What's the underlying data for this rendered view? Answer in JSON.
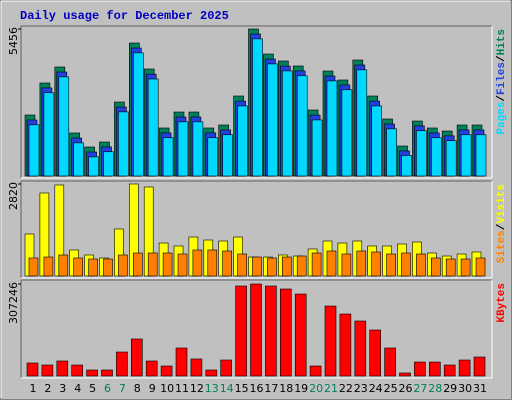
{
  "legend_separator": "/",
  "chart_data": [
    {
      "type": "bar",
      "title": "Daily usage for December 2025",
      "title_color": "#0000c0",
      "ylim": [
        0,
        5456
      ],
      "yticks": [
        5456
      ],
      "series": [
        {
          "name": "Hits",
          "color": "#00805c",
          "values": [
            2264,
            3452,
            4046,
            1596,
            1076,
            1262,
            2747,
            4936,
            3971,
            1782,
            2375,
            2375,
            1782,
            1893,
            2969,
            5456,
            4528,
            4268,
            4083,
            2450,
            3897,
            3563,
            4305,
            2969,
            2116,
            1113,
            2041,
            1782,
            1670,
            1893,
            1893
          ]
        },
        {
          "name": "Files",
          "color": "#2040e0",
          "values": [
            2080,
            3270,
            3860,
            1410,
            890,
            1080,
            2560,
            4750,
            3780,
            1600,
            2190,
            2190,
            1600,
            1710,
            2780,
            5270,
            4340,
            4080,
            3900,
            2260,
            3710,
            3380,
            4120,
            2780,
            1930,
            930,
            1860,
            1600,
            1490,
            1710,
            1710
          ]
        },
        {
          "name": "Pages",
          "color": "#00d8ff",
          "values": [
            1900,
            3090,
            3680,
            1230,
            710,
            900,
            2380,
            4570,
            3600,
            1420,
            2010,
            2010,
            1420,
            1530,
            2600,
            5090,
            4160,
            3900,
            3720,
            2080,
            3530,
            3200,
            3940,
            2600,
            1750,
            760,
            1680,
            1420,
            1310,
            1530,
            1530
          ]
        }
      ]
    },
    {
      "type": "bar",
      "ylim": [
        0,
        2820
      ],
      "yticks": [
        2820
      ],
      "series": [
        {
          "name": "Visits",
          "color": "#ffff00",
          "values": [
            1287,
            2544,
            2789,
            797,
            644,
            552,
            1441,
            2820,
            2728,
            1011,
            920,
            1195,
            1103,
            1073,
            1195,
            582,
            582,
            644,
            613,
            828,
            1073,
            1011,
            1073,
            920,
            920,
            981,
            1042,
            705,
            613,
            674,
            736
          ]
        },
        {
          "name": "Sites",
          "color": "#ff8000",
          "values": [
            552,
            582,
            644,
            552,
            521,
            521,
            644,
            705,
            705,
            705,
            674,
            797,
            797,
            766,
            674,
            582,
            552,
            582,
            613,
            705,
            766,
            674,
            766,
            736,
            674,
            705,
            674,
            552,
            521,
            521,
            552
          ]
        }
      ]
    },
    {
      "type": "bar",
      "ylim": [
        0,
        307246
      ],
      "yticks": [
        307246
      ],
      "categories": [
        "1",
        "2",
        "3",
        "4",
        "5",
        "6",
        "7",
        "8",
        "9",
        "10",
        "11",
        "12",
        "13",
        "14",
        "15",
        "16",
        "17",
        "18",
        "19",
        "20",
        "21",
        "22",
        "23",
        "24",
        "25",
        "26",
        "27",
        "28",
        "29",
        "30",
        "31"
      ],
      "category_colors": [
        "#000000",
        "#000000",
        "#000000",
        "#000000",
        "#000000",
        "#00805c",
        "#00805c",
        "#000000",
        "#000000",
        "#000000",
        "#000000",
        "#000000",
        "#00805c",
        "#00805c",
        "#000000",
        "#000000",
        "#000000",
        "#000000",
        "#000000",
        "#00805c",
        "#00805c",
        "#000000",
        "#000000",
        "#000000",
        "#000000",
        "#000000",
        "#00805c",
        "#00805c",
        "#000000",
        "#000000",
        "#000000"
      ],
      "series": [
        {
          "name": "KBytes",
          "color": "#ff0000",
          "values": [
            43400,
            36700,
            50100,
            36700,
            20000,
            20000,
            80100,
            123600,
            50100,
            33400,
            93500,
            56800,
            20000,
            53400,
            300500,
            307246,
            300500,
            290500,
            273800,
            33400,
            233700,
            207000,
            183600,
            153600,
            93500,
            10000,
            46700,
            46700,
            36700,
            53400,
            63400
          ]
        }
      ]
    }
  ]
}
